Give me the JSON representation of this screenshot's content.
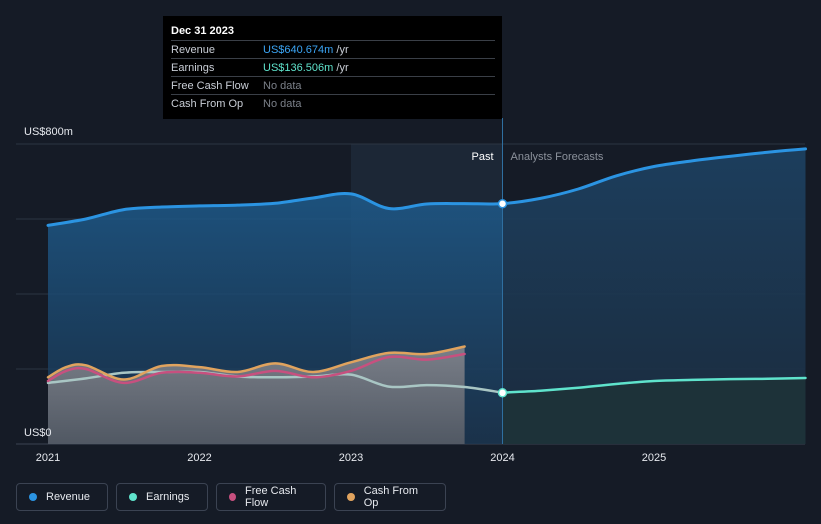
{
  "colors": {
    "background": "#151b26",
    "revenue": "#2b94e2",
    "earnings": "#5fe3cc",
    "free_cash_flow": "#c7507f",
    "cash_from_op": "#e0a35e",
    "tooltip_revenue": "#3ba5f5",
    "tooltip_earnings": "#5fe3cc"
  },
  "tooltip": {
    "date": "Dec 31 2023",
    "rows": [
      {
        "label": "Revenue",
        "value": "US$640.674m",
        "unit": "/yr"
      },
      {
        "label": "Earnings",
        "value": "US$136.506m",
        "unit": "/yr"
      },
      {
        "label": "Free Cash Flow",
        "value": "No data",
        "unit": ""
      },
      {
        "label": "Cash From Op",
        "value": "No data",
        "unit": ""
      }
    ]
  },
  "legend": [
    {
      "label": "Revenue",
      "icon": "revenue-dot-icon"
    },
    {
      "label": "Earnings",
      "icon": "earnings-dot-icon"
    },
    {
      "label": "Free Cash Flow",
      "icon": "free-cash-flow-dot-icon"
    },
    {
      "label": "Cash From Op",
      "icon": "cash-from-op-dot-icon"
    }
  ],
  "chart_data": {
    "type": "line",
    "title": "",
    "xlabel": "",
    "ylabel": "",
    "ylim": [
      0,
      800
    ],
    "xlim": [
      2021.0,
      2026.0
    ],
    "y_tick_labels": [
      "US$800m",
      "US$0"
    ],
    "x_tick_labels": [
      "2021",
      "2022",
      "2023",
      "2024",
      "2025"
    ],
    "x_ticks": [
      2021,
      2022,
      2023,
      2024,
      2025
    ],
    "gridlines": [
      0,
      200,
      400,
      600,
      800
    ],
    "past_label": "Past",
    "forecast_label": "Analysts Forecasts",
    "past_end": 2024.0,
    "highlight_start": 2023.0,
    "series": [
      {
        "name": "Revenue",
        "x": [
          2021.0,
          2021.25,
          2021.5,
          2021.75,
          2022.0,
          2022.25,
          2022.5,
          2022.75,
          2023.0,
          2023.25,
          2023.5,
          2023.75,
          2024.0,
          2024.25,
          2024.5,
          2024.75,
          2025.0,
          2025.25,
          2025.5,
          2025.75,
          2026.0
        ],
        "values": [
          583,
          600,
          625,
          632,
          635,
          637,
          642,
          656,
          667,
          628,
          640,
          641,
          641,
          655,
          680,
          715,
          740,
          755,
          767,
          778,
          787
        ]
      },
      {
        "name": "Earnings",
        "x": [
          2021.0,
          2021.25,
          2021.5,
          2021.75,
          2022.0,
          2022.25,
          2022.5,
          2022.75,
          2023.0,
          2023.25,
          2023.5,
          2023.75,
          2024.0,
          2024.25,
          2024.5,
          2024.75,
          2025.0,
          2025.25,
          2025.5,
          2025.75,
          2026.0
        ],
        "values": [
          163,
          175,
          190,
          192,
          192,
          180,
          178,
          180,
          185,
          153,
          157,
          152,
          137,
          142,
          150,
          160,
          168,
          171,
          173,
          174,
          176
        ]
      },
      {
        "name": "Free Cash Flow",
        "x": [
          2021.0,
          2021.12,
          2021.25,
          2021.5,
          2021.75,
          2022.0,
          2022.25,
          2022.5,
          2022.75,
          2023.0,
          2023.25,
          2023.5,
          2023.75
        ],
        "values": [
          168,
          195,
          200,
          163,
          190,
          190,
          180,
          195,
          178,
          195,
          232,
          225,
          240
        ]
      },
      {
        "name": "Cash From Op",
        "x": [
          2021.0,
          2021.12,
          2021.25,
          2021.5,
          2021.75,
          2022.0,
          2022.25,
          2022.5,
          2022.75,
          2023.0,
          2023.25,
          2023.5,
          2023.75
        ],
        "values": [
          178,
          205,
          210,
          172,
          208,
          205,
          192,
          215,
          192,
          218,
          243,
          240,
          260
        ]
      }
    ],
    "markers": [
      {
        "series": "Revenue",
        "x": 2024.0,
        "y": 640.674
      },
      {
        "series": "Earnings",
        "x": 2024.0,
        "y": 136.506
      }
    ]
  }
}
